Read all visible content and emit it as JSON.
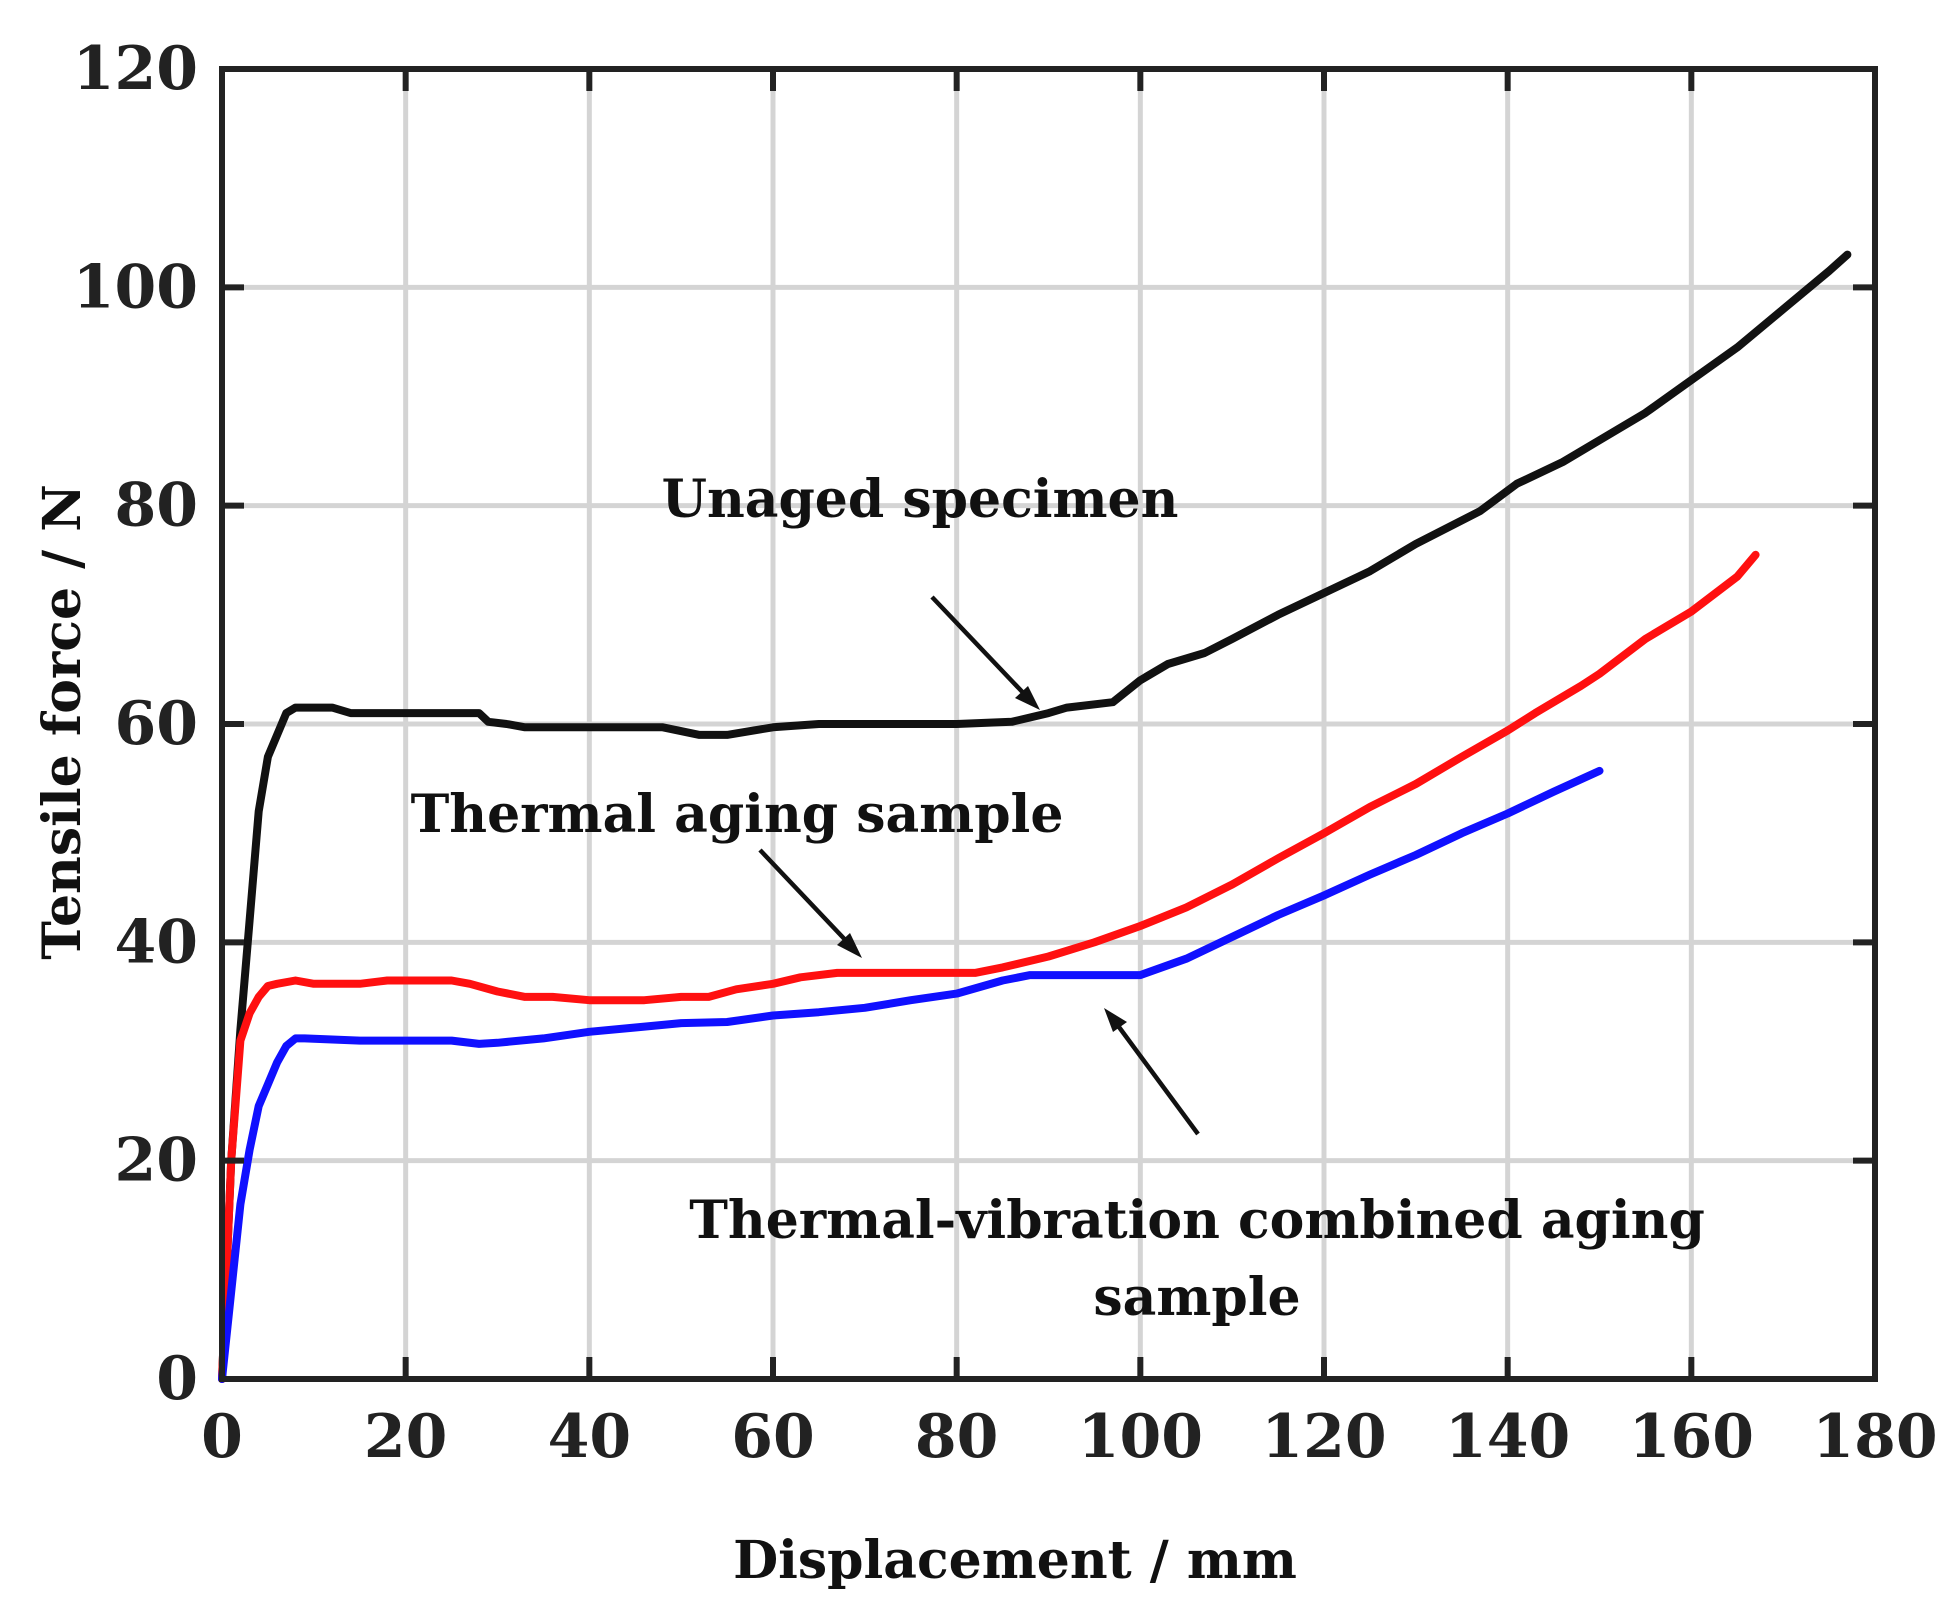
{
  "chart_data": {
    "type": "line",
    "xlabel": "Displacement / mm",
    "ylabel": "Tensile force / N",
    "xlim": [
      0,
      180
    ],
    "ylim": [
      0,
      120
    ],
    "xticks": [
      0,
      20,
      40,
      60,
      80,
      100,
      120,
      140,
      160,
      180
    ],
    "yticks": [
      0,
      20,
      40,
      60,
      80,
      100,
      120
    ],
    "grid": true,
    "series": [
      {
        "name": "Unaged specimen",
        "color": "#111111",
        "x": [
          0,
          0.5,
          1,
          2,
          3,
          4,
          5,
          6,
          7,
          8,
          9,
          12,
          14,
          20,
          25,
          28,
          29,
          31,
          33,
          40,
          48,
          52,
          55,
          60,
          65,
          70,
          80,
          86,
          90,
          92,
          97,
          100,
          103,
          107,
          110,
          115,
          120,
          125,
          130,
          137,
          141,
          146,
          150,
          155,
          160,
          165,
          170,
          175,
          177
        ],
        "y": [
          0,
          10,
          20,
          32,
          42,
          52,
          57,
          59,
          61,
          61.5,
          61.5,
          61.5,
          61,
          61,
          61,
          61,
          60.2,
          60,
          59.7,
          59.7,
          59.7,
          59,
          59,
          59.7,
          60,
          60,
          60,
          60.2,
          61,
          61.5,
          62,
          64,
          65.5,
          66.5,
          67.8,
          70,
          72,
          74,
          76.5,
          79.5,
          82,
          84,
          86,
          88.5,
          91.5,
          94.5,
          98,
          101.5,
          103
        ]
      },
      {
        "name": "Thermal aging sample",
        "color": "#ff1010",
        "x": [
          0,
          1,
          2,
          3,
          4,
          5,
          6,
          8,
          10,
          15,
          18,
          25,
          27,
          30,
          33,
          36,
          40,
          46,
          50,
          53,
          56,
          60,
          63,
          67,
          70,
          82,
          85,
          90,
          95,
          100,
          105,
          110,
          115,
          120,
          125,
          130,
          135,
          140,
          143,
          148,
          150,
          155,
          160,
          165,
          167
        ],
        "y": [
          0,
          20,
          31,
          33.5,
          35,
          36,
          36.2,
          36.5,
          36.2,
          36.2,
          36.5,
          36.5,
          36.2,
          35.5,
          35,
          35,
          34.7,
          34.7,
          35,
          35,
          35.7,
          36.2,
          36.8,
          37.2,
          37.2,
          37.2,
          37.7,
          38.7,
          40,
          41.5,
          43.2,
          45.3,
          47.7,
          50,
          52.4,
          54.5,
          57,
          59.4,
          61,
          63.5,
          64.6,
          67.8,
          70.3,
          73.5,
          75.5
        ]
      },
      {
        "name": "Thermal-vibration combined aging sample",
        "color": "#1010ff",
        "x": [
          0,
          1,
          2,
          3,
          4,
          5,
          6,
          7,
          8,
          9,
          15,
          20,
          25,
          28,
          30,
          35,
          40,
          45,
          50,
          55,
          60,
          65,
          70,
          75,
          80,
          85,
          88,
          95,
          100,
          105,
          110,
          115,
          120,
          125,
          130,
          135,
          140,
          145,
          150
        ],
        "y": [
          0,
          8,
          16,
          21,
          25,
          27,
          29,
          30.5,
          31.2,
          31.2,
          31,
          31,
          31,
          30.7,
          30.8,
          31.2,
          31.8,
          32.2,
          32.6,
          32.7,
          33.3,
          33.6,
          34,
          34.7,
          35.3,
          36.5,
          37,
          37,
          37,
          38.5,
          40.5,
          42.5,
          44.3,
          46.2,
          48,
          50,
          51.8,
          53.8,
          55.7
        ]
      }
    ],
    "annotations": [
      {
        "id": "unaged",
        "lines": [
          "Unaged specimen"
        ]
      },
      {
        "id": "thermal",
        "lines": [
          "Thermal aging sample"
        ]
      },
      {
        "id": "combined",
        "lines": [
          "Thermal-vibration combined aging",
          "sample"
        ]
      }
    ]
  }
}
